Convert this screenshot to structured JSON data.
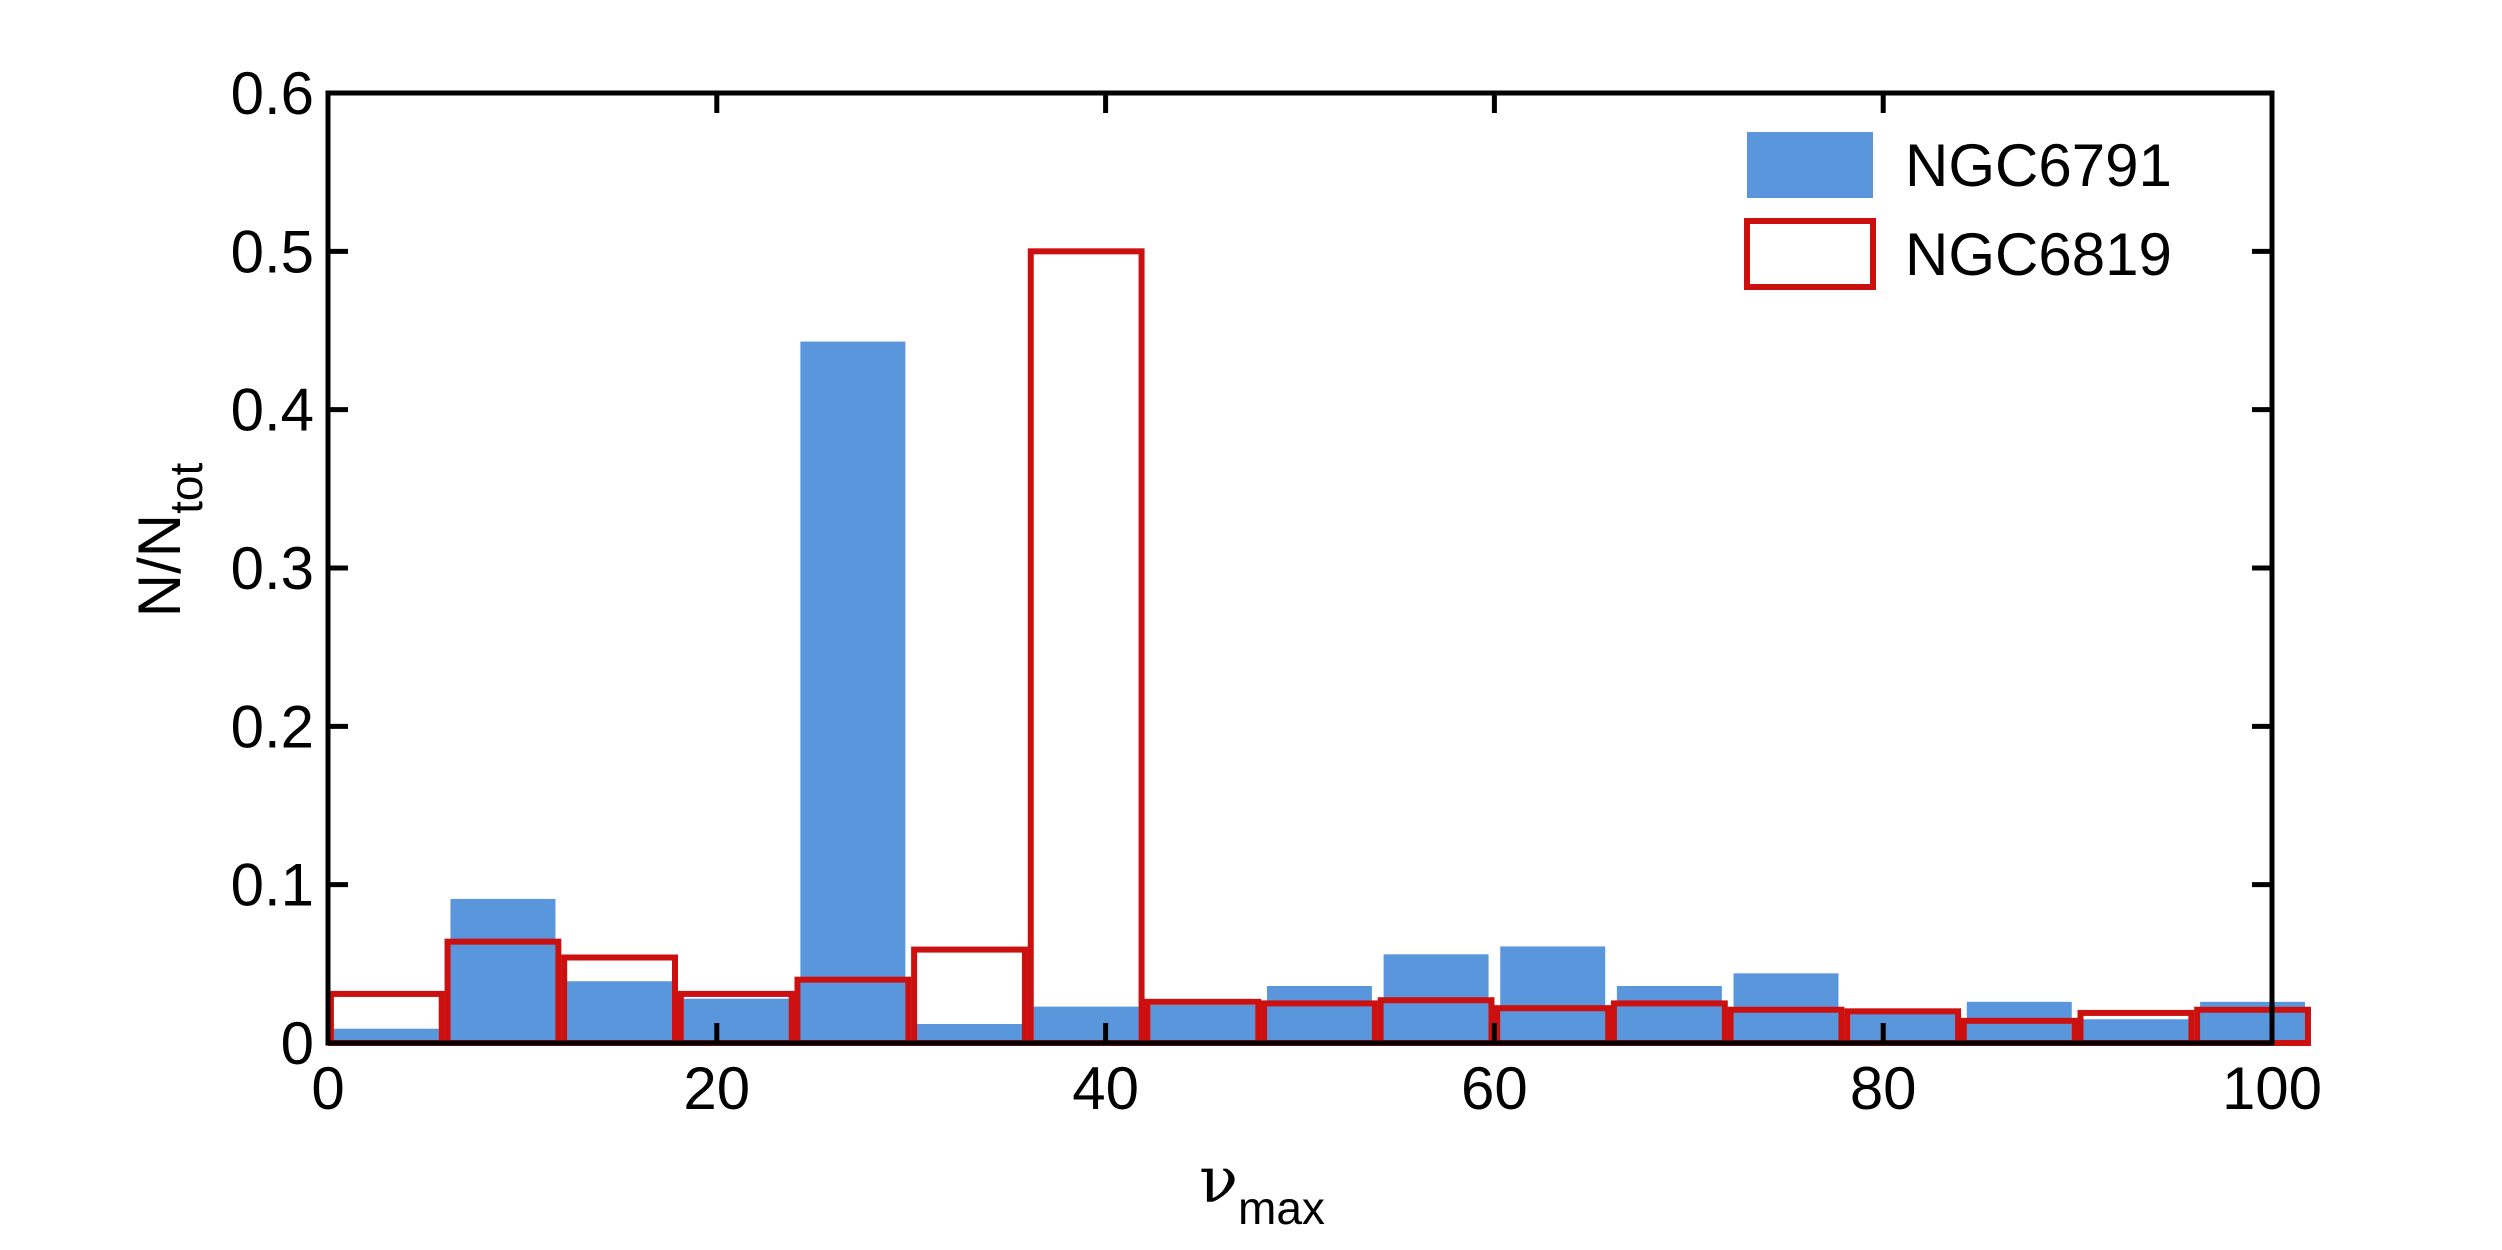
{
  "colors": {
    "bar_fill": "#5a96dc",
    "outline": "#cc0f0f",
    "axis": "#000000",
    "background": "#ffffff"
  },
  "chart_data": {
    "type": "bar",
    "xlabel": "ν",
    "xlabel_sub": "max",
    "ylabel": "N/N",
    "ylabel_sub": "tot",
    "xlim": [
      0,
      100
    ],
    "ylim": [
      0,
      0.6
    ],
    "xticks": [
      0,
      20,
      40,
      60,
      80,
      100
    ],
    "xtick_labels": [
      "0",
      "20",
      "40",
      "60",
      "80",
      "100"
    ],
    "yticks": [
      0,
      0.1,
      0.2,
      0.3,
      0.4,
      0.5,
      0.6
    ],
    "ytick_labels": [
      "0",
      "0.1",
      "0.2",
      "0.3",
      "0.4",
      "0.5",
      "0.6"
    ],
    "grid": false,
    "legend_position": "top-right",
    "bin_centers": [
      3,
      9,
      15,
      21,
      27,
      33,
      39,
      45,
      51,
      57,
      63,
      69,
      75,
      81,
      87,
      93,
      99
    ],
    "bin_width": 6,
    "series": [
      {
        "name": "NGC6791",
        "style": "filled",
        "values": [
          0.009,
          0.091,
          0.039,
          0.028,
          0.443,
          0.012,
          0.023,
          0.024,
          0.036,
          0.056,
          0.061,
          0.036,
          0.044,
          0.02,
          0.026,
          0.015,
          0.026
        ]
      },
      {
        "name": "NGC6819",
        "style": "outline",
        "values": [
          0.031,
          0.064,
          0.054,
          0.031,
          0.04,
          0.059,
          0.5,
          0.026,
          0.025,
          0.027,
          0.022,
          0.025,
          0.021,
          0.02,
          0.014,
          0.019,
          0.021
        ]
      }
    ]
  }
}
